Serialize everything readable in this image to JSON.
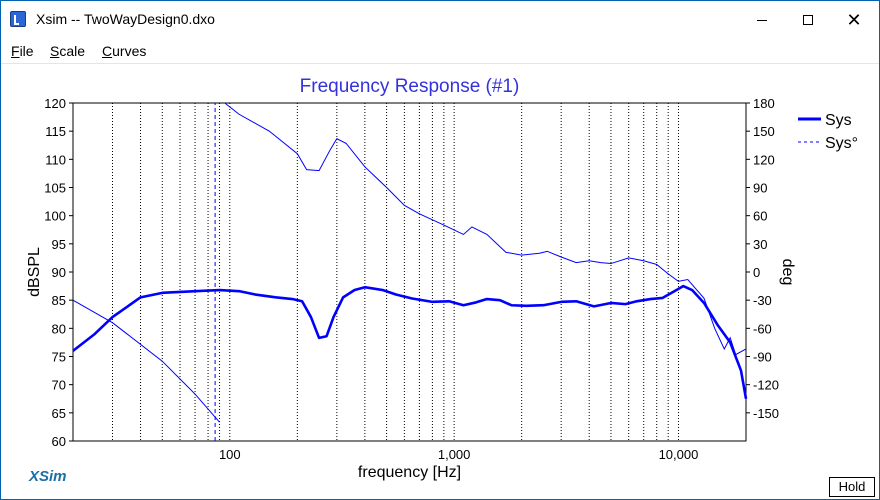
{
  "window": {
    "title": "Xsim -- TwoWayDesign0.dxo",
    "close_glyph": "✕",
    "icon": "xsim-app-icon",
    "buttons": [
      "minimize-icon",
      "maximize-icon",
      "close-icon"
    ]
  },
  "menu": {
    "file": {
      "u": "F",
      "rest": "ile"
    },
    "scale": {
      "u": "S",
      "rest": "cale"
    },
    "curves": {
      "u": "C",
      "rest": "urves"
    }
  },
  "brand": "XSim",
  "hold_label": "Hold",
  "colors": {
    "accent": "#0000ff",
    "title": "#3333dd",
    "brand": "#1a6fa8"
  },
  "chart_data": {
    "type": "line",
    "title": "Frequency Response (#1)",
    "xlabel": "frequency [Hz]",
    "ylabel": "dBSPL",
    "y2label": "deg",
    "x_scale": "log",
    "xlim": [
      20,
      20000
    ],
    "ylim": [
      60,
      120
    ],
    "y2lim": [
      -180,
      180
    ],
    "x_ticks": [
      {
        "v": 100,
        "label": "100"
      },
      {
        "v": 1000,
        "label": "1,000"
      },
      {
        "v": 10000,
        "label": "10,000"
      }
    ],
    "y_ticks": [
      60,
      65,
      70,
      75,
      80,
      85,
      90,
      95,
      100,
      105,
      110,
      115,
      120
    ],
    "y2_ticks": [
      -150,
      -120,
      -90,
      -60,
      -30,
      0,
      30,
      60,
      90,
      120,
      150,
      180
    ],
    "grid": "vertical dotted at log decades",
    "legend": {
      "placement": "top-right",
      "entries": [
        {
          "name": "Sys",
          "style": "solid-thick"
        },
        {
          "name": "Sys°",
          "style": "dashed"
        }
      ]
    },
    "series": [
      {
        "name": "Sys",
        "axis": "left",
        "points": [
          [
            20,
            76
          ],
          [
            25,
            79
          ],
          [
            30,
            82
          ],
          [
            40,
            85.5
          ],
          [
            50,
            86.3
          ],
          [
            70,
            86.6
          ],
          [
            90,
            86.8
          ],
          [
            110,
            86.6
          ],
          [
            130,
            86
          ],
          [
            160,
            85.5
          ],
          [
            190,
            85.2
          ],
          [
            210,
            84.8
          ],
          [
            230,
            82
          ],
          [
            250,
            78.3
          ],
          [
            270,
            78.6
          ],
          [
            290,
            82
          ],
          [
            320,
            85.5
          ],
          [
            360,
            86.8
          ],
          [
            400,
            87.3
          ],
          [
            480,
            86.8
          ],
          [
            550,
            86
          ],
          [
            650,
            85.3
          ],
          [
            800,
            84.7
          ],
          [
            950,
            84.8
          ],
          [
            1100,
            84.1
          ],
          [
            1250,
            84.6
          ],
          [
            1400,
            85.2
          ],
          [
            1600,
            85
          ],
          [
            1800,
            84.1
          ],
          [
            2100,
            84
          ],
          [
            2500,
            84.1
          ],
          [
            3000,
            84.7
          ],
          [
            3500,
            84.8
          ],
          [
            4200,
            83.9
          ],
          [
            5000,
            84.5
          ],
          [
            5800,
            84.3
          ],
          [
            6500,
            84.8
          ],
          [
            7500,
            85.2
          ],
          [
            8500,
            85.4
          ],
          [
            9500,
            86.5
          ],
          [
            10500,
            87.5
          ],
          [
            11500,
            86.8
          ],
          [
            13000,
            84.5
          ],
          [
            15000,
            80.5
          ],
          [
            17000,
            77.5
          ],
          [
            19000,
            72.5
          ],
          [
            20000,
            67.5
          ]
        ]
      },
      {
        "name": "Sys°",
        "axis": "right",
        "points": [
          [
            20,
            -30
          ],
          [
            30,
            -54
          ],
          [
            50,
            -95
          ],
          [
            70,
            -130
          ],
          [
            90,
            -160
          ],
          [
            95,
            180
          ],
          [
            110,
            168
          ],
          [
            150,
            150
          ],
          [
            200,
            126
          ],
          [
            220,
            109
          ],
          [
            250,
            108
          ],
          [
            280,
            130
          ],
          [
            300,
            142
          ],
          [
            330,
            137
          ],
          [
            400,
            112
          ],
          [
            500,
            90
          ],
          [
            600,
            71
          ],
          [
            700,
            62
          ],
          [
            900,
            50
          ],
          [
            1100,
            40
          ],
          [
            1200,
            48
          ],
          [
            1400,
            40
          ],
          [
            1700,
            21
          ],
          [
            2000,
            18
          ],
          [
            2400,
            20
          ],
          [
            2600,
            22
          ],
          [
            3000,
            16
          ],
          [
            3500,
            10
          ],
          [
            4000,
            12
          ],
          [
            4500,
            10
          ],
          [
            5000,
            9
          ],
          [
            6000,
            15
          ],
          [
            7000,
            12
          ],
          [
            8000,
            8
          ],
          [
            9000,
            -2
          ],
          [
            10000,
            -10
          ],
          [
            11000,
            -8
          ],
          [
            13000,
            -28
          ],
          [
            14500,
            -60
          ],
          [
            16000,
            -82
          ],
          [
            17000,
            -70
          ],
          [
            18000,
            -88
          ],
          [
            20000,
            -82
          ]
        ]
      },
      {
        "name": "",
        "axis": "left",
        "style": "dashed",
        "points": [
          [
            86,
            60
          ],
          [
            86,
            120
          ]
        ]
      }
    ]
  }
}
